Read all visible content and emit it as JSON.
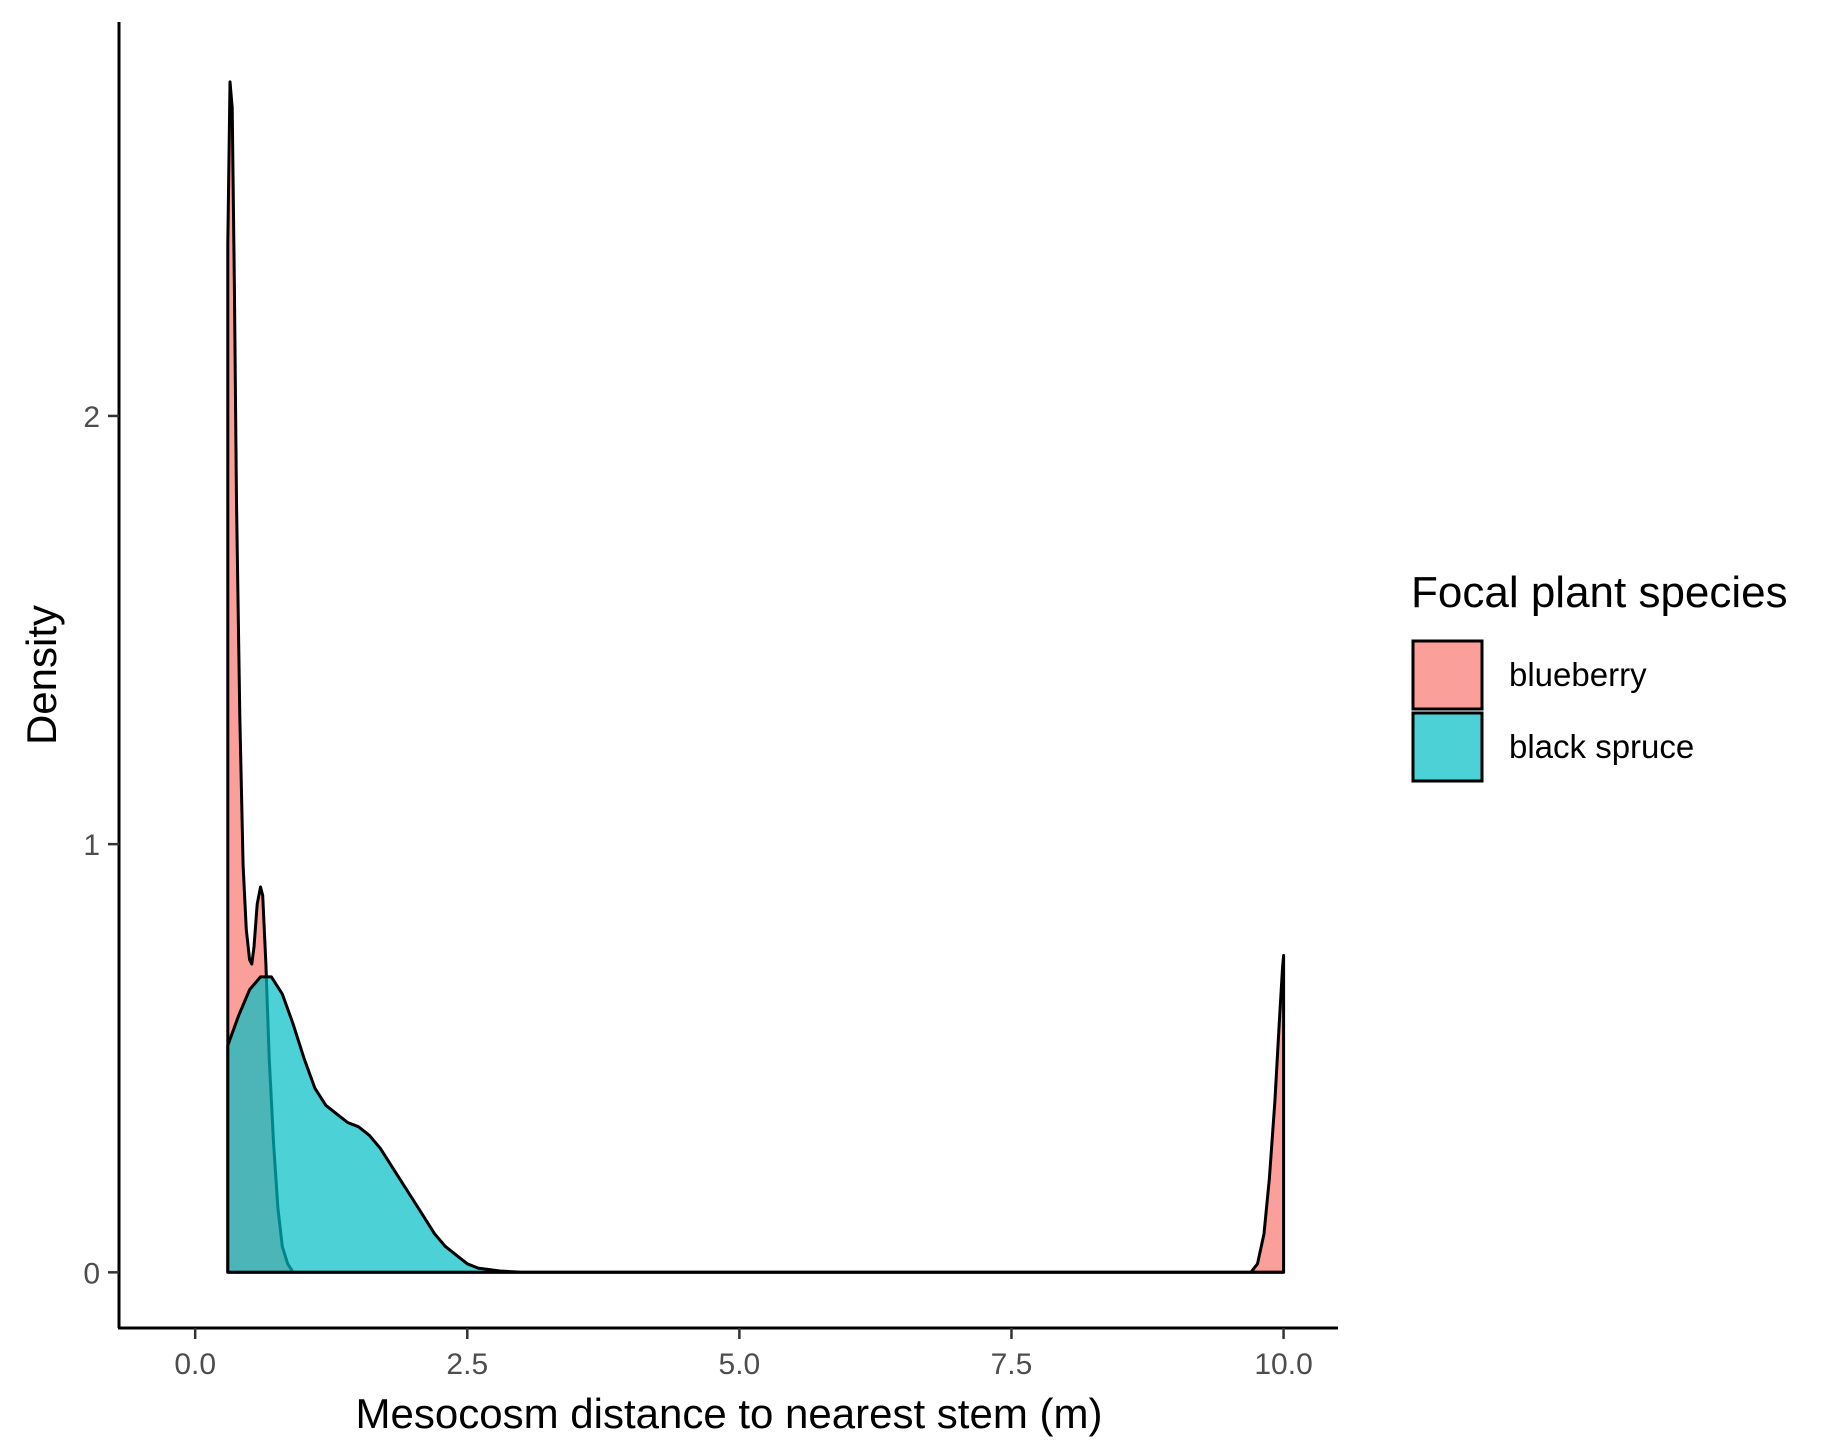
{
  "chart_data": {
    "type": "area",
    "title": "",
    "xlabel": "Mesocosm distance to nearest stem (m)",
    "ylabel": "Density",
    "xlim": [
      -0.7,
      10.5
    ],
    "ylim": [
      -0.13,
      2.92
    ],
    "x_ticks": [
      0,
      2.5,
      5,
      7.5,
      10
    ],
    "x_tick_labels": [
      "0.0",
      "2.5",
      "5.0",
      "7.5",
      "10.0"
    ],
    "y_ticks": [
      0,
      1,
      2
    ],
    "y_tick_labels": [
      "0",
      "1",
      "2"
    ],
    "grid": false,
    "legend": {
      "title": "Focal plant species",
      "placement": "right",
      "entries": [
        {
          "label": "blueberry",
          "color": "#F8766D"
        },
        {
          "label": "black spruce",
          "color": "#00BFC4"
        }
      ]
    },
    "fill_opacity": 0.7,
    "series": [
      {
        "name": "blueberry",
        "color": "#F8766D",
        "points": [
          [
            0.3,
            0.0
          ],
          [
            0.3,
            2.4
          ],
          [
            0.32,
            2.78
          ],
          [
            0.34,
            2.72
          ],
          [
            0.36,
            2.3
          ],
          [
            0.38,
            1.8
          ],
          [
            0.41,
            1.3
          ],
          [
            0.44,
            0.95
          ],
          [
            0.47,
            0.8
          ],
          [
            0.5,
            0.73
          ],
          [
            0.52,
            0.72
          ],
          [
            0.54,
            0.76
          ],
          [
            0.57,
            0.86
          ],
          [
            0.6,
            0.9
          ],
          [
            0.62,
            0.88
          ],
          [
            0.65,
            0.72
          ],
          [
            0.68,
            0.5
          ],
          [
            0.72,
            0.3
          ],
          [
            0.76,
            0.15
          ],
          [
            0.8,
            0.06
          ],
          [
            0.85,
            0.02
          ],
          [
            0.9,
            0.0
          ],
          [
            9.7,
            0.0
          ],
          [
            9.76,
            0.02
          ],
          [
            9.82,
            0.09
          ],
          [
            9.87,
            0.22
          ],
          [
            9.92,
            0.4
          ],
          [
            9.96,
            0.58
          ],
          [
            9.99,
            0.71
          ],
          [
            10.0,
            0.74
          ],
          [
            10.0,
            0.0
          ]
        ]
      },
      {
        "name": "black spruce",
        "color": "#00BFC4",
        "points": [
          [
            0.3,
            0.0
          ],
          [
            0.3,
            0.53
          ],
          [
            0.4,
            0.6
          ],
          [
            0.5,
            0.66
          ],
          [
            0.6,
            0.69
          ],
          [
            0.7,
            0.69
          ],
          [
            0.8,
            0.65
          ],
          [
            0.9,
            0.58
          ],
          [
            1.0,
            0.5
          ],
          [
            1.1,
            0.43
          ],
          [
            1.2,
            0.39
          ],
          [
            1.3,
            0.37
          ],
          [
            1.4,
            0.35
          ],
          [
            1.5,
            0.34
          ],
          [
            1.6,
            0.32
          ],
          [
            1.7,
            0.29
          ],
          [
            1.8,
            0.25
          ],
          [
            1.9,
            0.21
          ],
          [
            2.0,
            0.17
          ],
          [
            2.1,
            0.13
          ],
          [
            2.2,
            0.09
          ],
          [
            2.3,
            0.06
          ],
          [
            2.4,
            0.04
          ],
          [
            2.5,
            0.02
          ],
          [
            2.6,
            0.01
          ],
          [
            2.8,
            0.003
          ],
          [
            3.0,
            0.0
          ],
          [
            10.0,
            0.0
          ]
        ]
      }
    ]
  }
}
